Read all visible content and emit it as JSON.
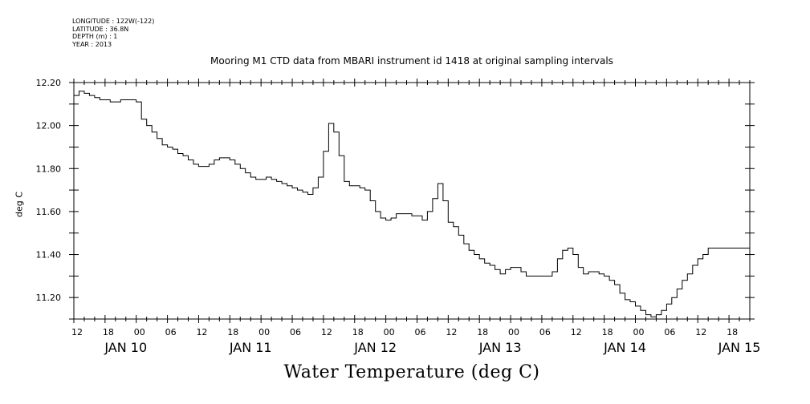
{
  "header": {
    "lines": [
      "LONGITUDE : 122W(-122)",
      "LATITUDE : 36.8N",
      "DEPTH (m) : 1",
      "YEAR : 2013"
    ]
  },
  "chart_data": {
    "type": "line",
    "title": "Mooring M1 CTD data from MBARI instrument id 1418 at original sampling intervals",
    "xlabel": "Water Temperature (deg C)",
    "ylabel": "deg C",
    "ylim": [
      11.1,
      12.2
    ],
    "xlim_hours": [
      0,
      130
    ],
    "y_ticks": [
      "11.20",
      "11.40",
      "11.60",
      "11.80",
      "12.00",
      "12.20"
    ],
    "x_hour_ticks": [
      "12",
      "18",
      "00",
      "06",
      "12",
      "18",
      "00",
      "06",
      "12",
      "18",
      "00",
      "06",
      "12",
      "18",
      "00",
      "06",
      "12",
      "18",
      "00",
      "06",
      "12",
      "18"
    ],
    "x_day_labels": [
      "JAN 10",
      "JAN 11",
      "JAN 12",
      "JAN 13",
      "JAN 14",
      "JAN 15"
    ],
    "x_hours": [
      0,
      1,
      2,
      3,
      4,
      5,
      6,
      7,
      8,
      9,
      10,
      11,
      12,
      13,
      14,
      15,
      16,
      17,
      18,
      19,
      20,
      21,
      22,
      23,
      24,
      25,
      26,
      27,
      28,
      29,
      30,
      31,
      32,
      33,
      34,
      35,
      36,
      37,
      38,
      39,
      40,
      41,
      42,
      43,
      44,
      45,
      46,
      47,
      48,
      49,
      50,
      51,
      52,
      53,
      54,
      55,
      56,
      57,
      58,
      59,
      60,
      61,
      62,
      63,
      64,
      65,
      66,
      67,
      68,
      69,
      70,
      71,
      72,
      73,
      74,
      75,
      76,
      77,
      78,
      79,
      80,
      81,
      82,
      83,
      84,
      85,
      86,
      87,
      88,
      89,
      90,
      91,
      92,
      93,
      94,
      95,
      96,
      97,
      98,
      99,
      100,
      101,
      102,
      103,
      104,
      105,
      106,
      107,
      108,
      109,
      110,
      111,
      112,
      113,
      114,
      115,
      116,
      117,
      118,
      119,
      120,
      121,
      122,
      123,
      124,
      125,
      126,
      127,
      128,
      129,
      130
    ],
    "values": [
      12.14,
      12.16,
      12.15,
      12.14,
      12.13,
      12.12,
      12.12,
      12.11,
      12.11,
      12.12,
      12.12,
      12.12,
      12.11,
      12.03,
      12.0,
      11.97,
      11.94,
      11.91,
      11.9,
      11.89,
      11.87,
      11.86,
      11.84,
      11.82,
      11.81,
      11.81,
      11.82,
      11.84,
      11.85,
      11.85,
      11.84,
      11.82,
      11.8,
      11.78,
      11.76,
      11.75,
      11.75,
      11.76,
      11.75,
      11.74,
      11.73,
      11.72,
      11.71,
      11.7,
      11.69,
      11.68,
      11.71,
      11.76,
      11.88,
      12.01,
      11.97,
      11.86,
      11.74,
      11.72,
      11.72,
      11.71,
      11.7,
      11.65,
      11.6,
      11.57,
      11.56,
      11.57,
      11.59,
      11.59,
      11.59,
      11.58,
      11.58,
      11.56,
      11.6,
      11.66,
      11.73,
      11.65,
      11.55,
      11.53,
      11.49,
      11.45,
      11.42,
      11.4,
      11.38,
      11.36,
      11.35,
      11.33,
      11.31,
      11.33,
      11.34,
      11.34,
      11.32,
      11.3,
      11.3,
      11.3,
      11.3,
      11.3,
      11.32,
      11.38,
      11.42,
      11.43,
      11.4,
      11.34,
      11.31,
      11.32,
      11.32,
      11.31,
      11.3,
      11.28,
      11.26,
      11.22,
      11.19,
      11.18,
      11.16,
      11.14,
      11.12,
      11.11,
      11.12,
      11.14,
      11.17,
      11.2,
      11.24,
      11.28,
      11.31,
      11.35,
      11.38,
      11.4,
      11.43,
      11.43,
      11.43,
      11.43,
      11.43,
      11.43,
      11.43,
      11.43,
      11.43
    ]
  }
}
